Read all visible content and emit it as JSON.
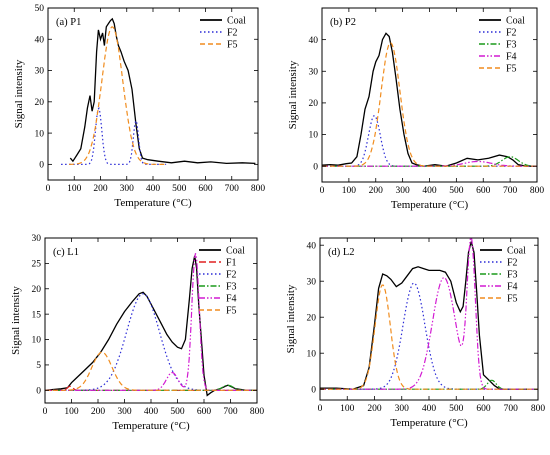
{
  "chart_data": [
    {
      "type": "line",
      "panel_label": "(a) P1",
      "xlabel": "Temperature (°C)",
      "ylabel": "Signal intensity",
      "xlim": [
        0,
        800
      ],
      "ylim": [
        -5,
        50
      ],
      "xticks": [
        0,
        100,
        200,
        300,
        400,
        500,
        600,
        700,
        800
      ],
      "yticks": [
        0,
        10,
        20,
        30,
        40,
        50
      ],
      "legend_position": "top-right",
      "series": [
        {
          "name": "Coal",
          "color": "#000000",
          "dash": "solid",
          "x": [
            85,
            95,
            110,
            125,
            140,
            150,
            160,
            168,
            176,
            185,
            192,
            200,
            208,
            215,
            222,
            230,
            238,
            245,
            252,
            260,
            268,
            278,
            290,
            305,
            320,
            335,
            348,
            360,
            380,
            420,
            470,
            520,
            570,
            620,
            680,
            740,
            790
          ],
          "y": [
            2,
            1,
            3,
            5,
            12,
            18,
            22,
            17,
            20,
            36,
            43,
            40,
            42,
            38,
            44,
            45,
            46,
            46.5,
            45,
            41,
            38,
            36,
            33,
            30,
            24,
            13,
            5,
            2,
            1.5,
            1,
            0.5,
            1,
            0.5,
            0.8,
            0.3,
            0.5,
            0.3
          ]
        },
        {
          "name": "F2",
          "color": "#2b2bd6",
          "dash": "dot",
          "peaks": [
            {
              "center": 193,
              "height": 18,
              "width": 12
            },
            {
              "center": 335,
              "height": 14,
              "width": 10
            }
          ],
          "x_range": [
            50,
            450
          ]
        },
        {
          "name": "F5",
          "color": "#f08c1e",
          "dash": "dash",
          "peaks": [
            {
              "center": 245,
              "height": 44,
              "width": 40
            }
          ],
          "x_range": [
            80,
            450
          ]
        }
      ]
    },
    {
      "type": "line",
      "panel_label": "(b) P2",
      "xlabel": "Temperature (°C)",
      "ylabel": "Signal intensity",
      "xlim": [
        0,
        800
      ],
      "ylim": [
        -5,
        50
      ],
      "xticks": [
        0,
        100,
        200,
        300,
        400,
        500,
        600,
        700,
        800
      ],
      "yticks": [
        0,
        10,
        20,
        30,
        40
      ],
      "legend_position": "top-right",
      "series": [
        {
          "name": "Coal",
          "color": "#000000",
          "dash": "solid",
          "x": [
            0,
            30,
            60,
            90,
            110,
            130,
            145,
            160,
            175,
            190,
            200,
            212,
            225,
            238,
            250,
            262,
            275,
            290,
            305,
            320,
            335,
            350,
            380,
            420,
            460,
            500,
            540,
            580,
            620,
            660,
            690,
            710,
            730,
            760,
            790
          ],
          "y": [
            0.3,
            0.5,
            0.3,
            0.8,
            1,
            3,
            10,
            18,
            22,
            30,
            33,
            35,
            40,
            42,
            41,
            36,
            28,
            18,
            10,
            4,
            1,
            0.5,
            0,
            0.5,
            0,
            1,
            2.5,
            2,
            2.5,
            3.5,
            3,
            2,
            0.5,
            0,
            0
          ]
        },
        {
          "name": "F2",
          "color": "#2b2bd6",
          "dash": "dot",
          "peaks": [
            {
              "center": 195,
              "height": 16,
              "width": 22
            }
          ],
          "x_range": [
            0,
            800
          ]
        },
        {
          "name": "F3",
          "color": "#1a9a1a",
          "dash": "dashdot",
          "peaks": [
            {
              "center": 700,
              "height": 3,
              "width": 30
            }
          ],
          "x_range": [
            0,
            800
          ]
        },
        {
          "name": "F4",
          "color": "#d21ad2",
          "dash": "dashdotdot",
          "peaks": [
            {
              "center": 580,
              "height": 1.5,
              "width": 50
            }
          ],
          "x_range": [
            0,
            800
          ]
        },
        {
          "name": "F5",
          "color": "#f08c1e",
          "dash": "dash",
          "peaks": [
            {
              "center": 255,
              "height": 39,
              "width": 35
            }
          ],
          "x_range": [
            0,
            800
          ]
        }
      ]
    },
    {
      "type": "line",
      "panel_label": "(c) L1",
      "xlabel": "Temperature (°C)",
      "ylabel": "Signal intensity",
      "xlim": [
        0,
        800
      ],
      "ylim": [
        -2.5,
        30
      ],
      "xticks": [
        0,
        100,
        200,
        300,
        400,
        500,
        600,
        700,
        800
      ],
      "yticks": [
        0,
        5,
        10,
        15,
        20,
        25,
        30
      ],
      "legend_position": "top-right",
      "series": [
        {
          "name": "Coal",
          "color": "#000000",
          "dash": "solid",
          "x": [
            0,
            60,
            85,
            100,
            120,
            150,
            180,
            210,
            240,
            270,
            300,
            330,
            355,
            370,
            385,
            400,
            420,
            440,
            460,
            480,
            500,
            515,
            530,
            545,
            555,
            565,
            572,
            580,
            590,
            600,
            612,
            625,
            640,
            660,
            690,
            720,
            760,
            800
          ],
          "y": [
            0,
            0.3,
            0.5,
            1.5,
            2.5,
            4,
            5.5,
            7.5,
            10,
            13,
            15.5,
            17.5,
            19,
            19.3,
            18.5,
            17,
            15,
            13,
            11,
            9.5,
            8.5,
            8.2,
            10,
            18,
            24,
            26.5,
            24,
            17,
            10,
            3,
            -1,
            -0.5,
            0,
            0.3,
            1,
            0.3,
            0,
            0
          ]
        },
        {
          "name": "F1",
          "color": "#e02020",
          "dash": "longdash",
          "peaks": [
            {
              "center": 95,
              "height": 0.8,
              "width": 10
            }
          ],
          "x_range": [
            0,
            800
          ]
        },
        {
          "name": "F2",
          "color": "#2b2bd6",
          "dash": "dot",
          "peaks": [
            {
              "center": 370,
              "height": 19,
              "width": 62
            }
          ],
          "x_range": [
            0,
            800
          ]
        },
        {
          "name": "F3",
          "color": "#1a9a1a",
          "dash": "dashdot",
          "peaks": [
            {
              "center": 690,
              "height": 1,
              "width": 20
            }
          ],
          "x_range": [
            0,
            800
          ]
        },
        {
          "name": "F4",
          "color": "#d21ad2",
          "dash": "dashdotdot",
          "peaks": [
            {
              "center": 480,
              "height": 3.5,
              "width": 22
            },
            {
              "center": 568,
              "height": 27,
              "width": 14
            }
          ],
          "x_range": [
            0,
            800
          ]
        },
        {
          "name": "F5",
          "color": "#f08c1e",
          "dash": "dash",
          "peaks": [
            {
              "center": 215,
              "height": 7.5,
              "width": 38
            }
          ],
          "x_range": [
            0,
            800
          ]
        }
      ]
    },
    {
      "type": "line",
      "panel_label": "(d) L2",
      "xlabel": "Temperature (°C)",
      "ylabel": "Signal intensity",
      "xlim": [
        0,
        800
      ],
      "ylim": [
        -3,
        42
      ],
      "xticks": [
        0,
        100,
        200,
        300,
        400,
        500,
        600,
        700,
        800
      ],
      "yticks": [
        0,
        10,
        20,
        30,
        40
      ],
      "legend_position": "top-right",
      "series": [
        {
          "name": "Coal",
          "color": "#000000",
          "dash": "solid",
          "x": [
            0,
            60,
            120,
            160,
            180,
            200,
            215,
            230,
            245,
            260,
            280,
            300,
            320,
            340,
            360,
            380,
            400,
            420,
            440,
            460,
            480,
            500,
            515,
            525,
            535,
            545,
            555,
            565,
            575,
            585,
            600,
            620,
            640,
            660,
            700,
            760
          ],
          "y": [
            0.3,
            0.3,
            0,
            1,
            6,
            18,
            28,
            32,
            31.5,
            30.5,
            28.5,
            29.5,
            31.5,
            33.5,
            34,
            33.5,
            33,
            33,
            33,
            32.5,
            30,
            24,
            21.5,
            23,
            30,
            38,
            41,
            38,
            27,
            15,
            4,
            2.5,
            1,
            0,
            0,
            0
          ]
        },
        {
          "name": "F2",
          "color": "#2b2bd6",
          "dash": "dot",
          "peaks": [
            {
              "center": 345,
              "height": 29.5,
              "width": 40
            }
          ],
          "x_range": [
            0,
            800
          ]
        },
        {
          "name": "F3",
          "color": "#1a9a1a",
          "dash": "dashdot",
          "peaks": [
            {
              "center": 630,
              "height": 2.5,
              "width": 16
            }
          ],
          "x_range": [
            0,
            800
          ]
        },
        {
          "name": "F4",
          "color": "#d21ad2",
          "dash": "dashdotdot",
          "peaks": [
            {
              "center": 455,
              "height": 31,
              "width": 42
            },
            {
              "center": 555,
              "height": 40.5,
              "width": 15
            }
          ],
          "x_range": [
            0,
            800
          ]
        },
        {
          "name": "F5",
          "color": "#f08c1e",
          "dash": "dash",
          "peaks": [
            {
              "center": 230,
              "height": 29,
              "width": 28
            }
          ],
          "x_range": [
            0,
            800
          ]
        }
      ]
    }
  ]
}
